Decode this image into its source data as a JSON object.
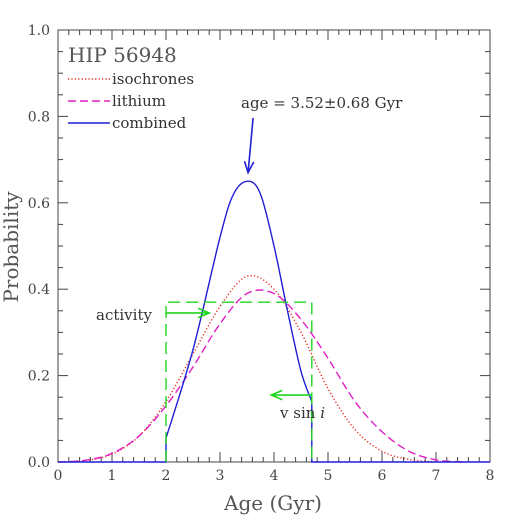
{
  "chart_data": {
    "type": "line",
    "title": "HIP 56948",
    "xlabel": "Age (Gyr)",
    "ylabel": "Probability",
    "xlim": [
      0,
      8
    ],
    "ylim": [
      0,
      1.0
    ],
    "xticks": [
      0,
      1,
      2,
      3,
      4,
      5,
      6,
      7,
      8
    ],
    "yticks": [
      0.0,
      0.2,
      0.4,
      0.6,
      0.8,
      1.0
    ],
    "ytick_labels": [
      "0.0",
      "0.2",
      "0.4",
      "0.6",
      "0.8",
      "1.0"
    ],
    "grid": false,
    "legend_position": "top-left",
    "series": [
      {
        "name": "isochrones",
        "style": "dotted",
        "color": "#e8261d",
        "x": [
          0.0,
          0.5,
          1.0,
          1.5,
          2.0,
          2.5,
          3.0,
          3.5,
          4.0,
          4.5,
          5.0,
          5.5,
          6.0,
          6.5,
          7.0
        ],
        "y": [
          0.0,
          0.003,
          0.018,
          0.06,
          0.14,
          0.25,
          0.36,
          0.43,
          0.4,
          0.3,
          0.17,
          0.075,
          0.025,
          0.006,
          0.0
        ]
      },
      {
        "name": "lithium",
        "style": "dashed",
        "color": "#e01fc4",
        "x": [
          0.0,
          0.5,
          1.0,
          1.5,
          2.0,
          2.5,
          3.0,
          3.5,
          4.0,
          4.5,
          5.0,
          5.5,
          6.0,
          6.5,
          7.0,
          7.5
        ],
        "y": [
          0.0,
          0.004,
          0.02,
          0.06,
          0.13,
          0.22,
          0.32,
          0.39,
          0.39,
          0.33,
          0.24,
          0.14,
          0.07,
          0.025,
          0.005,
          0.0
        ]
      },
      {
        "name": "combined",
        "style": "solid",
        "color": "#1f1fd6",
        "x": [
          0.0,
          2.0,
          2.0,
          2.5,
          3.0,
          3.25,
          3.52,
          3.75,
          4.0,
          4.25,
          4.5,
          4.7,
          4.7,
          8.0
        ],
        "y": [
          0.0,
          0.0,
          0.055,
          0.26,
          0.52,
          0.62,
          0.65,
          0.62,
          0.5,
          0.35,
          0.21,
          0.14,
          0.0,
          0.0
        ]
      },
      {
        "name": "activity",
        "style": "long-dash",
        "color": "#1fd61f",
        "x": [
          2.0,
          2.0,
          4.7,
          4.7
        ],
        "y": [
          0.0,
          0.37,
          0.37,
          0.0
        ]
      }
    ],
    "annotations": {
      "age_text": "age = 3.52±0.68 Gyr",
      "activity_label": "activity",
      "vsini_label": "v sin",
      "vsini_italic": "i"
    },
    "colors": {
      "axis": "#444444",
      "arrow_blue": "#1f1fd6",
      "arrow_green": "#1fd61f"
    }
  }
}
